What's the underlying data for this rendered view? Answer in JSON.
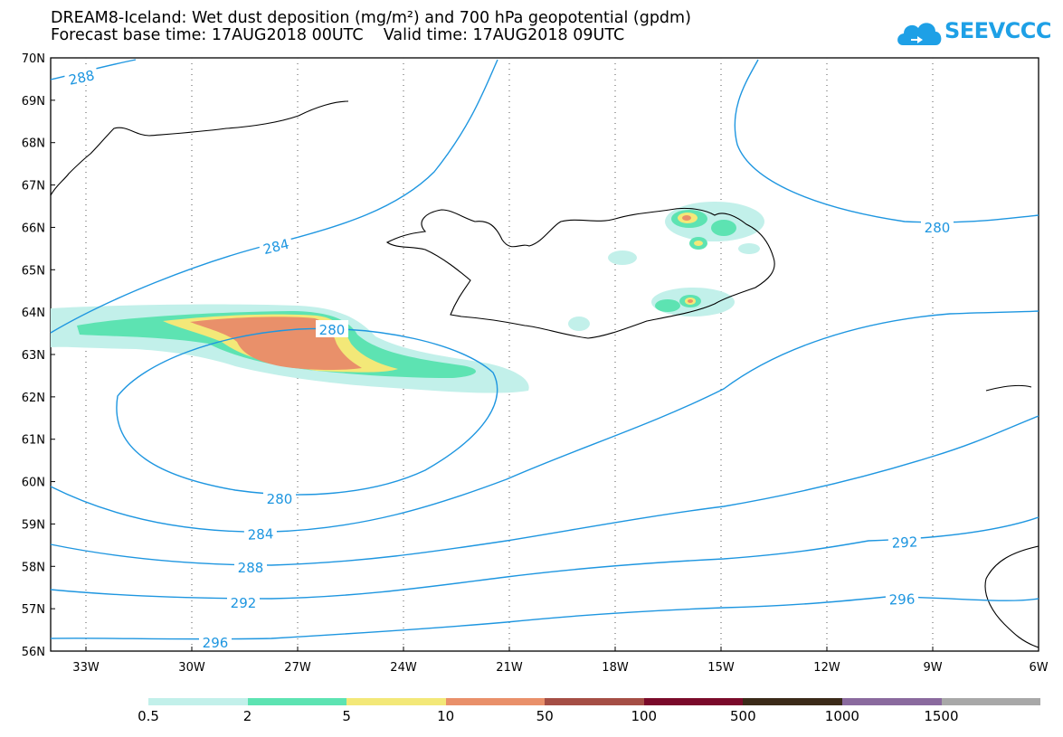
{
  "title_line1": "DREAM8-Iceland: Wet dust deposition (mg/m²) and 700 hPa geopotential (gpdm)",
  "title_line2": "Forecast base time: 17AUG2018 00UTC    Valid time: 17AUG2018 09UTC",
  "logo_text": "SEEVCCC",
  "map": {
    "lat_labels": [
      "70N",
      "69N",
      "68N",
      "67N",
      "66N",
      "65N",
      "64N",
      "63N",
      "62N",
      "61N",
      "60N",
      "59N",
      "58N",
      "57N",
      "56N"
    ],
    "lon_labels": [
      "33W",
      "30W",
      "27W",
      "24W",
      "21W",
      "18W",
      "15W",
      "12W",
      "9W",
      "6W"
    ],
    "lat_range": [
      56,
      70
    ],
    "lon_range": [
      -34,
      -6
    ],
    "grid": "dotted",
    "contour_color": "#1e96e0",
    "contour_labels": [
      "288",
      "284",
      "280",
      "280",
      "280",
      "284",
      "288",
      "292",
      "296",
      "292",
      "296"
    ],
    "coastline_color": "#000000"
  },
  "colorbar": {
    "labels": [
      "0.5",
      "2",
      "5",
      "10",
      "50",
      "100",
      "500",
      "1000",
      "1500"
    ],
    "colors": [
      "#c2f0ea",
      "#5de3b2",
      "#f3e878",
      "#e9906a",
      "#a54e45",
      "#7a0a2a",
      "#3b2a18",
      "#8a6a9e",
      "#a8a8a8"
    ]
  }
}
